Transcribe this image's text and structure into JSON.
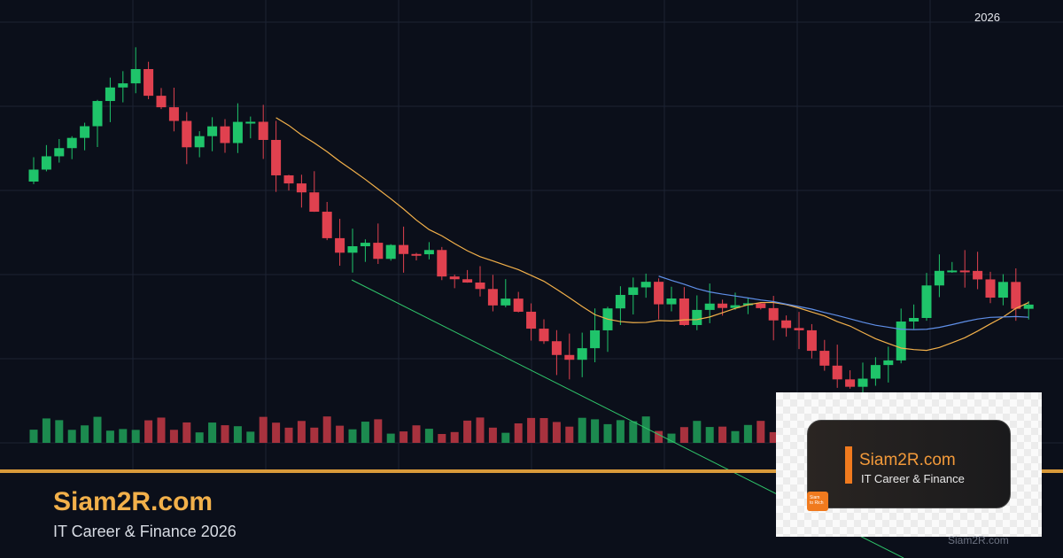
{
  "header": {
    "year_label": "2026"
  },
  "brand": {
    "title": "Siam2R.com",
    "subtitle": "IT Career & Finance 2026"
  },
  "card": {
    "title": "Siam2R.com",
    "subtitle": "IT Career & Finance",
    "logo_text": [
      "Siam",
      "to Rich"
    ]
  },
  "watermark": "Siam2R.com"
}
